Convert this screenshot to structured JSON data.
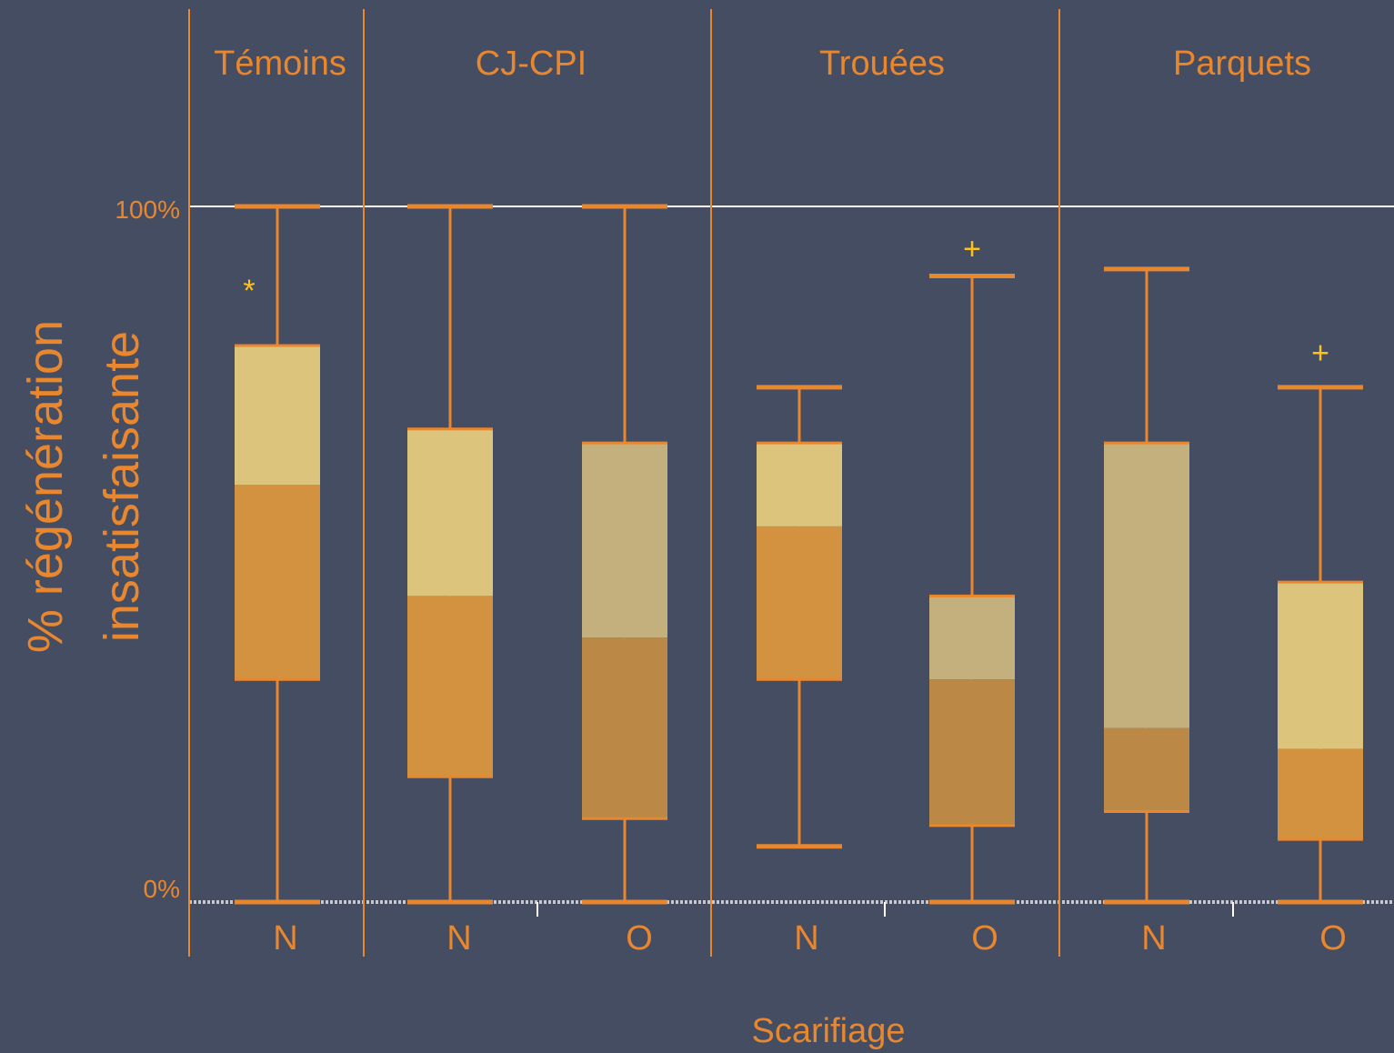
{
  "chart_data": {
    "type": "boxplot",
    "ylabel_lines": [
      "% régénération",
      "insatisfaisante"
    ],
    "xlabel": "Scarifiage",
    "ylim": [
      0,
      100
    ],
    "y_ticks": [
      {
        "value": 0,
        "label": "0%"
      },
      {
        "value": 100,
        "label": "100%"
      }
    ],
    "groups": [
      "Témoins",
      "CJ-CPI",
      "Trouées",
      "Parquets"
    ],
    "boxes": [
      {
        "group": "Témoins",
        "category": "N",
        "min": 0,
        "q1": 32,
        "median": 60,
        "q3": 80,
        "max": 100,
        "marker": "*",
        "marker_value": 88
      },
      {
        "group": "CJ-CPI",
        "category": "N",
        "min": 0,
        "q1": 18,
        "median": 44,
        "q3": 68,
        "max": 100
      },
      {
        "group": "CJ-CPI",
        "category": "O",
        "min": 0,
        "q1": 12,
        "median": 38,
        "q3": 66,
        "max": 100
      },
      {
        "group": "Trouées",
        "category": "N",
        "min": 8,
        "q1": 32,
        "median": 54,
        "q3": 66,
        "max": 74
      },
      {
        "group": "Trouées",
        "category": "O",
        "min": 0,
        "q1": 11,
        "median": 32,
        "q3": 44,
        "max": 90,
        "marker": "+",
        "marker_value": 94
      },
      {
        "group": "Parquets",
        "category": "N",
        "min": 0,
        "q1": 13,
        "median": 25,
        "q3": 66,
        "max": 91
      },
      {
        "group": "Parquets",
        "category": "O",
        "min": 0,
        "q1": 9,
        "median": 22,
        "q3": 46,
        "max": 74,
        "marker": "+",
        "marker_value": 79
      }
    ],
    "grid": false,
    "colors": {
      "background": "#454d62",
      "accent": "#e8872e",
      "box_upper_light": "#dcc47d",
      "box_upper_muted": "#c3b07c",
      "box_lower": "#d3923f",
      "box_lower_muted": "#bb8845",
      "marker": "#ffc21a",
      "reference_line": "#ffffff",
      "baseline": "#c8c8c8"
    }
  }
}
